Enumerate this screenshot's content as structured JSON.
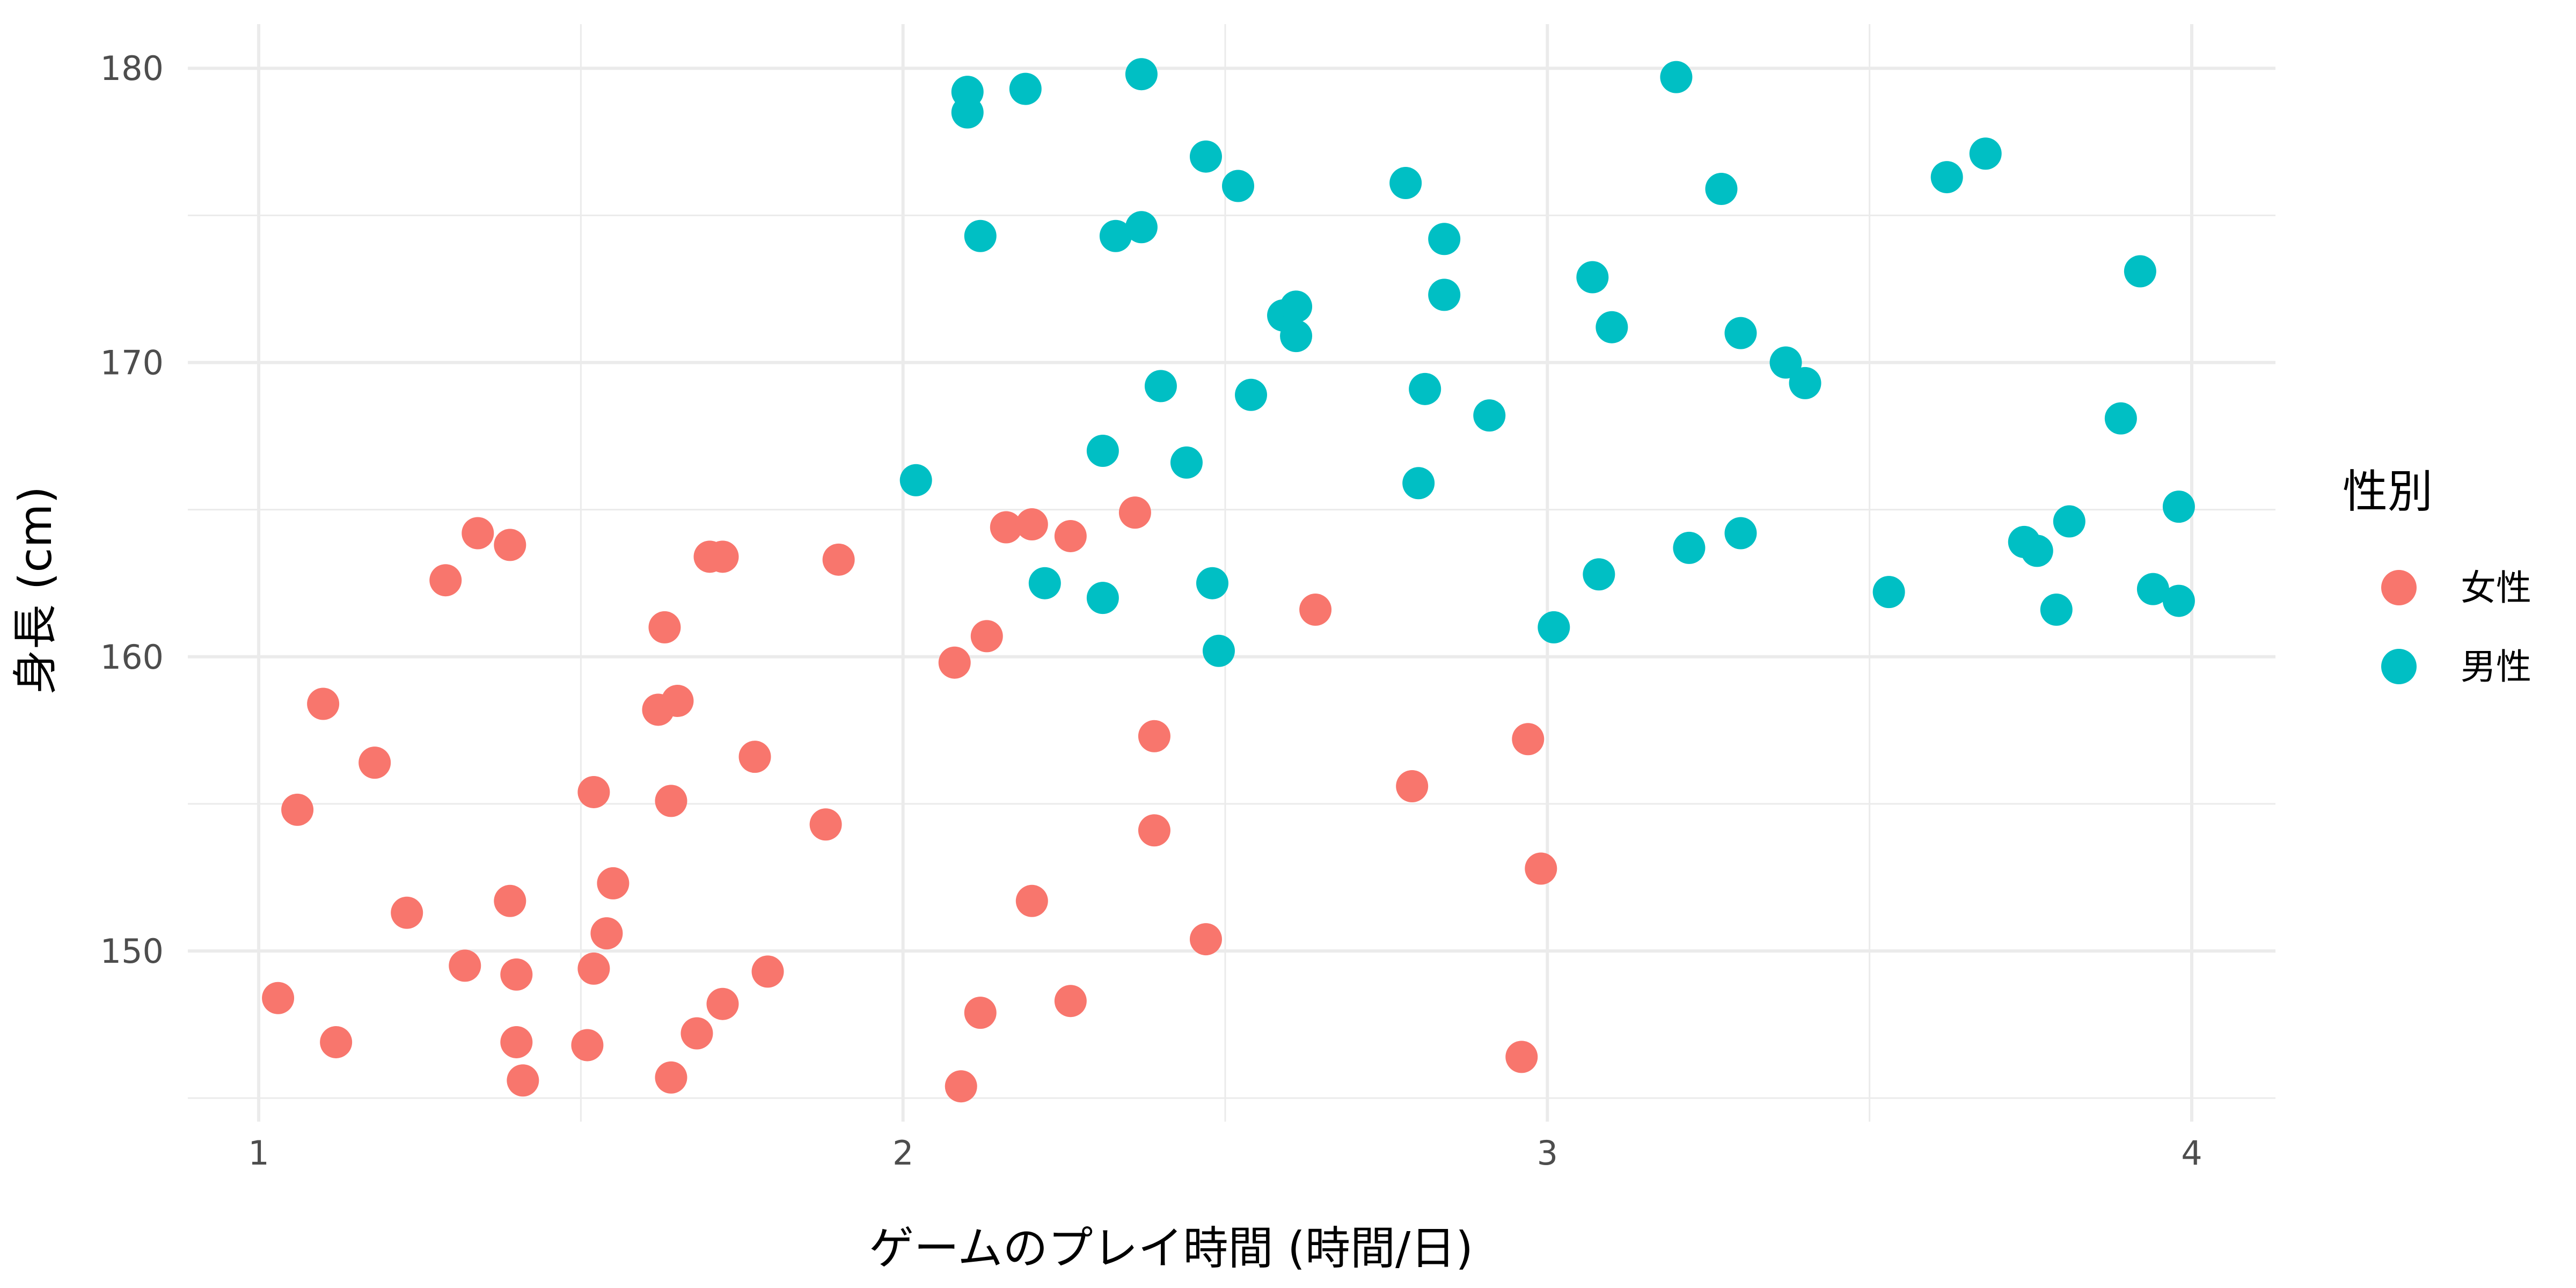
{
  "chart_data": {
    "type": "scatter",
    "xlabel": "ゲームのプレイ時間 (時間/日)",
    "ylabel": "身長 (cm)",
    "xlim": [
      0.89,
      4.13
    ],
    "ylim": [
      144.2,
      181.5
    ],
    "x_ticks": [
      1,
      2,
      3,
      4
    ],
    "y_ticks": [
      150,
      160,
      170,
      180
    ],
    "grid": true,
    "legend": {
      "title": "性別",
      "position": "right"
    },
    "series": [
      {
        "name": "女性",
        "color": "#F8766D",
        "points": [
          [
            1.03,
            148.4
          ],
          [
            1.06,
            154.8
          ],
          [
            1.1,
            158.4
          ],
          [
            1.12,
            146.9
          ],
          [
            1.18,
            156.4
          ],
          [
            1.23,
            151.3
          ],
          [
            1.29,
            162.6
          ],
          [
            1.32,
            149.5
          ],
          [
            1.34,
            164.2
          ],
          [
            1.39,
            163.8
          ],
          [
            1.39,
            151.7
          ],
          [
            1.4,
            149.2
          ],
          [
            1.4,
            146.9
          ],
          [
            1.41,
            145.6
          ],
          [
            1.51,
            146.8
          ],
          [
            1.52,
            155.4
          ],
          [
            1.52,
            149.4
          ],
          [
            1.54,
            150.6
          ],
          [
            1.55,
            152.3
          ],
          [
            1.62,
            158.2
          ],
          [
            1.63,
            161.0
          ],
          [
            1.64,
            155.1
          ],
          [
            1.64,
            145.7
          ],
          [
            1.65,
            158.5
          ],
          [
            1.68,
            147.2
          ],
          [
            1.7,
            163.4
          ],
          [
            1.72,
            163.4
          ],
          [
            1.72,
            148.2
          ],
          [
            1.77,
            156.6
          ],
          [
            1.79,
            149.3
          ],
          [
            1.88,
            154.3
          ],
          [
            1.9,
            163.3
          ],
          [
            2.08,
            159.8
          ],
          [
            2.09,
            145.4
          ],
          [
            2.12,
            147.9
          ],
          [
            2.13,
            160.7
          ],
          [
            2.16,
            164.4
          ],
          [
            2.2,
            164.5
          ],
          [
            2.2,
            151.7
          ],
          [
            2.26,
            164.1
          ],
          [
            2.26,
            148.3
          ],
          [
            2.36,
            164.9
          ],
          [
            2.39,
            157.3
          ],
          [
            2.39,
            154.1
          ],
          [
            2.47,
            150.4
          ],
          [
            2.64,
            161.6
          ],
          [
            2.79,
            155.6
          ],
          [
            2.96,
            146.4
          ],
          [
            2.97,
            157.2
          ],
          [
            2.99,
            152.8
          ]
        ]
      },
      {
        "name": "男性",
        "color": "#00BFC4",
        "points": [
          [
            2.02,
            166.0
          ],
          [
            2.1,
            179.2
          ],
          [
            2.1,
            178.5
          ],
          [
            2.12,
            174.3
          ],
          [
            2.19,
            179.3
          ],
          [
            2.22,
            162.5
          ],
          [
            2.31,
            167.0
          ],
          [
            2.31,
            162.0
          ],
          [
            2.33,
            174.3
          ],
          [
            2.37,
            174.6
          ],
          [
            2.37,
            179.8
          ],
          [
            2.4,
            169.2
          ],
          [
            2.44,
            166.6
          ],
          [
            2.47,
            177.0
          ],
          [
            2.48,
            162.5
          ],
          [
            2.49,
            160.2
          ],
          [
            2.52,
            176.0
          ],
          [
            2.54,
            168.9
          ],
          [
            2.59,
            171.6
          ],
          [
            2.61,
            171.9
          ],
          [
            2.61,
            170.9
          ],
          [
            2.78,
            176.1
          ],
          [
            2.8,
            165.9
          ],
          [
            2.81,
            169.1
          ],
          [
            2.84,
            174.2
          ],
          [
            2.84,
            172.3
          ],
          [
            2.91,
            168.2
          ],
          [
            3.01,
            161.0
          ],
          [
            3.07,
            172.9
          ],
          [
            3.08,
            162.8
          ],
          [
            3.1,
            171.2
          ],
          [
            3.2,
            179.7
          ],
          [
            3.22,
            163.7
          ],
          [
            3.27,
            175.9
          ],
          [
            3.3,
            171.0
          ],
          [
            3.3,
            164.2
          ],
          [
            3.37,
            170.0
          ],
          [
            3.4,
            169.3
          ],
          [
            3.53,
            162.2
          ],
          [
            3.62,
            176.3
          ],
          [
            3.68,
            177.1
          ],
          [
            3.74,
            163.9
          ],
          [
            3.76,
            163.6
          ],
          [
            3.79,
            161.6
          ],
          [
            3.81,
            164.6
          ],
          [
            3.89,
            168.1
          ],
          [
            3.92,
            173.1
          ],
          [
            3.94,
            162.3
          ],
          [
            3.98,
            165.1
          ],
          [
            3.98,
            161.9
          ]
        ]
      }
    ]
  }
}
